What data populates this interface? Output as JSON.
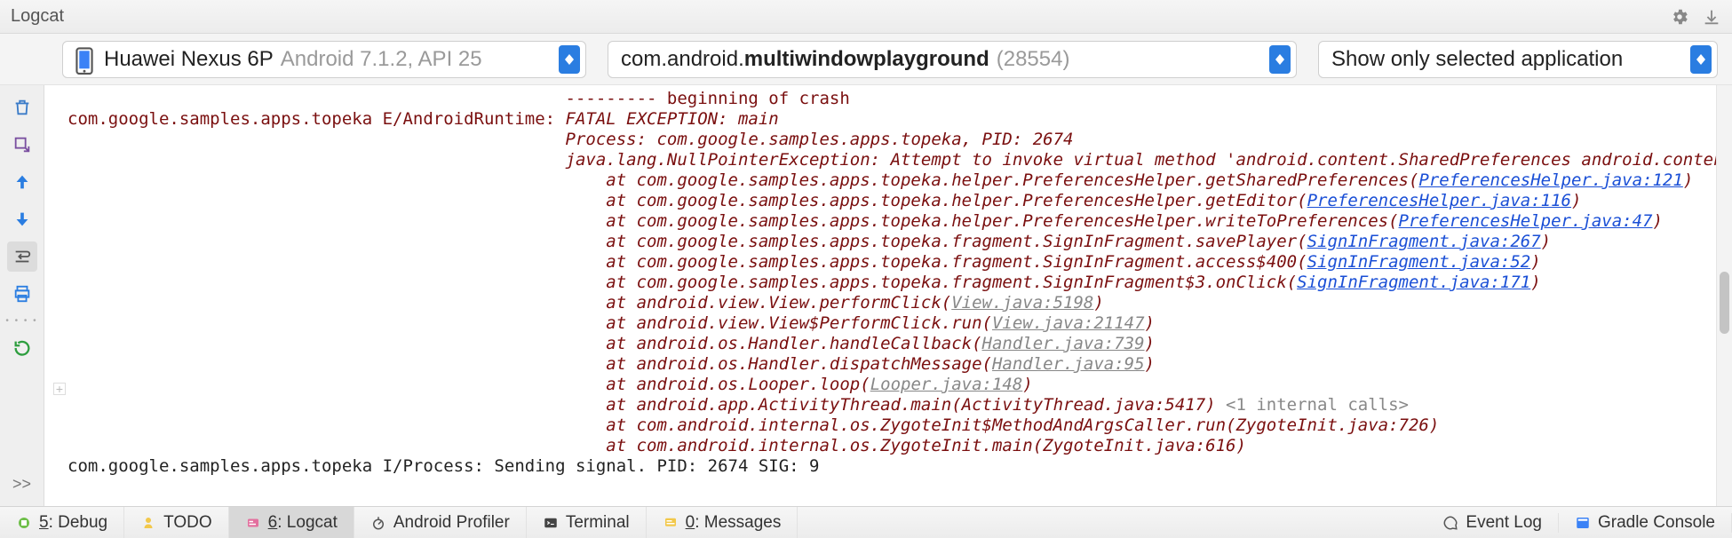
{
  "titlebar": {
    "title": "Logcat"
  },
  "selectors": {
    "device": {
      "name": "Huawei Nexus 6P",
      "sub": "Android 7.1.2, API 25"
    },
    "app": {
      "prefix": "com.android.",
      "bold": "multiwindowplayground",
      "pid": "(28554)"
    },
    "filter": {
      "label": "Show only selected application"
    }
  },
  "log": {
    "prefix": "com.google.samples.apps.topeka E/AndroidRuntime: ",
    "crash_marker": "--------- beginning of crash",
    "fatal": "FATAL EXCEPTION: main",
    "process": "Process: com.google.samples.apps.topeka, PID: 2674",
    "exception_head": "java.lang.NullPointerException: Attempt to invoke virtual method 'android.content.SharedPreferences android.content.C",
    "stack": [
      {
        "call": "at com.google.samples.apps.topeka.helper.PreferencesHelper.getSharedPreferences(",
        "link": "PreferencesHelper.java:121",
        "type": "blue"
      },
      {
        "call": "at com.google.samples.apps.topeka.helper.PreferencesHelper.getEditor(",
        "link": "PreferencesHelper.java:116",
        "type": "blue"
      },
      {
        "call": "at com.google.samples.apps.topeka.helper.PreferencesHelper.writeToPreferences(",
        "link": "PreferencesHelper.java:47",
        "type": "blue"
      },
      {
        "call": "at com.google.samples.apps.topeka.fragment.SignInFragment.savePlayer(",
        "link": "SignInFragment.java:267",
        "type": "blue"
      },
      {
        "call": "at com.google.samples.apps.topeka.fragment.SignInFragment.access$400(",
        "link": "SignInFragment.java:52",
        "type": "blue"
      },
      {
        "call": "at com.google.samples.apps.topeka.fragment.SignInFragment$3.onClick(",
        "link": "SignInFragment.java:171",
        "type": "blue"
      },
      {
        "call": "at android.view.View.performClick(",
        "link": "View.java:5198",
        "type": "gray"
      },
      {
        "call": "at android.view.View$PerformClick.run(",
        "link": "View.java:21147",
        "type": "gray"
      },
      {
        "call": "at android.os.Handler.handleCallback(",
        "link": "Handler.java:739",
        "type": "gray"
      },
      {
        "call": "at android.os.Handler.dispatchMessage(",
        "link": "Handler.java:95",
        "type": "gray"
      },
      {
        "call": "at android.os.Looper.loop(",
        "link": "Looper.java:148",
        "type": "gray"
      },
      {
        "call": "at android.app.ActivityThread.main(ActivityThread.java:5417)",
        "link": "",
        "type": "plain",
        "tail": " <1 internal calls>"
      },
      {
        "call": "at com.android.internal.os.ZygoteInit$MethodAndArgsCaller.run(ZygoteInit.java:726)",
        "link": "",
        "type": "plain"
      },
      {
        "call": "at com.android.internal.os.ZygoteInit.main(ZygoteInit.java:616)",
        "link": "",
        "type": "plain"
      }
    ],
    "info_line": "com.google.samples.apps.topeka I/Process: Sending signal. PID: 2674 SIG: 9"
  },
  "bottombar": {
    "tabs": [
      {
        "key": "5",
        "label": ": Debug"
      },
      {
        "key": "",
        "label": "TODO"
      },
      {
        "key": "6",
        "label": ": Logcat",
        "active": true
      },
      {
        "key": "",
        "label": "Android Profiler"
      },
      {
        "key": "",
        "label": "Terminal"
      },
      {
        "key": "0",
        "label": ": Messages"
      }
    ],
    "right": [
      {
        "label": "Event Log"
      },
      {
        "label": "Gradle Console"
      }
    ]
  },
  "colors": {
    "maroon": "#7a0f0f",
    "link_blue": "#1a4fd6",
    "link_gray": "#878787",
    "spin_blue": "#2a7de1",
    "bg": "#f2f2f2"
  }
}
